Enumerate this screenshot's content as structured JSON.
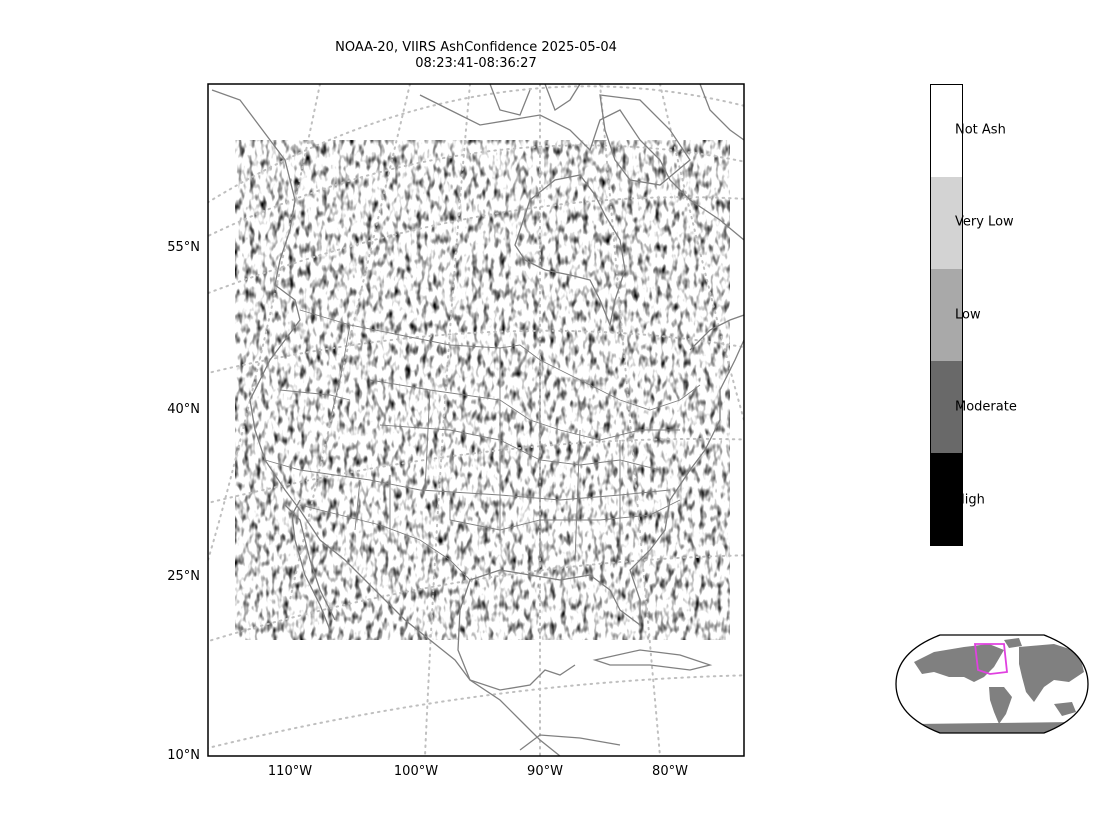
{
  "title": {
    "line1": "NOAA-20, VIIRS AshConfidence 2025-05-04",
    "line2": "08:23:41-08:36:27"
  },
  "lat_ticks": [
    "55°N",
    "40°N",
    "25°N",
    "10°N"
  ],
  "lon_ticks": [
    "110°W",
    "100°W",
    "90°W",
    "80°W"
  ],
  "colorbar": {
    "categories": [
      {
        "label": "Not Ash",
        "color": "#ffffff"
      },
      {
        "label": "Very Low",
        "color": "#d3d3d3"
      },
      {
        "label": "Low",
        "color": "#a9a9a9"
      },
      {
        "label": "Moderate",
        "color": "#696969"
      },
      {
        "label": "High",
        "color": "#000000"
      }
    ]
  },
  "colors": {
    "coastline": "#808080",
    "gridline": "#bfbfbf",
    "land_inset": "#808080",
    "extent_box": "#e040e0"
  }
}
